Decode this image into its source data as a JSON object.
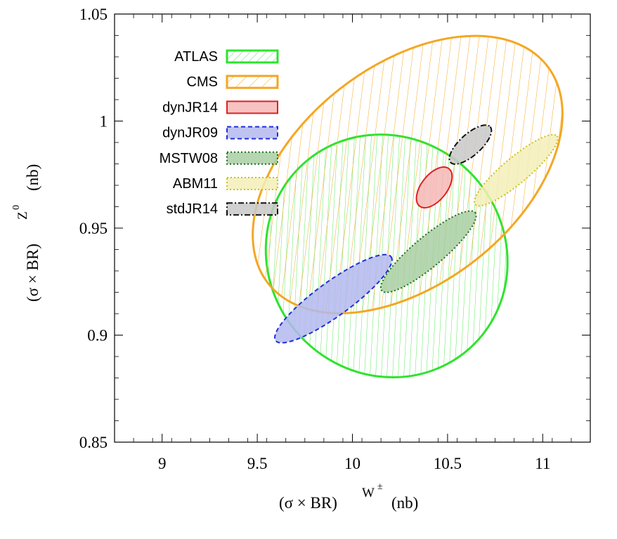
{
  "chart_data": {
    "type": "scatter",
    "title": "",
    "xlabel": {
      "base": "(σ × BR)",
      "sup": "W",
      "supsup": "±",
      "unit": "(nb)"
    },
    "ylabel": {
      "base": "(σ × BR)",
      "sup": "Z",
      "supsup": "0",
      "unit": "(nb)"
    },
    "xlim": [
      8.75,
      11.25
    ],
    "ylim": [
      0.85,
      1.05
    ],
    "xticks": [
      9,
      9.5,
      10,
      10.5,
      11
    ],
    "xtick_labels": [
      "9",
      "9.5",
      "10",
      "10.5",
      "11"
    ],
    "yticks": [
      0.85,
      0.9,
      0.95,
      1.0,
      1.05
    ],
    "ytick_labels": [
      "0.85",
      "0.9",
      "0.95",
      "1",
      "1.05"
    ],
    "grid": false,
    "legend_position": "top-left",
    "series": [
      {
        "name": "ATLAS",
        "center": [
          10.18,
          0.937
        ],
        "half_width": 0.62,
        "half_height": 0.058,
        "angle": 42,
        "stroke": "#2ee32e",
        "fill": "#2ee32e",
        "style": "hatch-fine",
        "dash": "",
        "stroke_width": 3
      },
      {
        "name": "CMS",
        "center": [
          10.29,
          0.975
        ],
        "half_width": 0.93,
        "half_height": 0.051,
        "angle": 38,
        "stroke": "#f5a623",
        "fill": "#f5a623",
        "style": "hatch-coarse",
        "dash": "",
        "stroke_width": 3
      },
      {
        "name": "dynJR14",
        "center": [
          10.43,
          0.969
        ],
        "half_width": 0.125,
        "half_height": 0.006,
        "angle": 52,
        "stroke": "#e02020",
        "fill": "#f7b7b7",
        "style": "solid",
        "dash": "",
        "stroke_width": 2
      },
      {
        "name": "dynJR09",
        "center": [
          9.9,
          0.917
        ],
        "half_width": 0.375,
        "half_height": 0.008,
        "angle": 36,
        "stroke": "#1f2fd9",
        "fill": "#b3b8ee",
        "style": "solid",
        "dash": "6,4",
        "stroke_width": 2
      },
      {
        "name": "MSTW08",
        "center": [
          10.4,
          0.939
        ],
        "half_width": 0.32,
        "half_height": 0.007,
        "angle": 40,
        "stroke": "#1e6e1e",
        "fill": "#a9cfa3",
        "style": "solid",
        "dash": "2,3",
        "stroke_width": 2
      },
      {
        "name": "ABM11",
        "center": [
          10.86,
          0.977
        ],
        "half_width": 0.28,
        "half_height": 0.006,
        "angle": 40,
        "stroke": "#c8c21f",
        "fill": "#f3eeb8",
        "style": "solid",
        "dash": "2,3",
        "stroke_width": 2
      },
      {
        "name": "stdJR14",
        "center": [
          10.62,
          0.989
        ],
        "half_width": 0.14,
        "half_height": 0.005,
        "angle": 42,
        "stroke": "#111111",
        "fill": "#c8c8c8",
        "style": "solid",
        "dash": "8,3,2,3",
        "stroke_width": 2
      }
    ]
  }
}
